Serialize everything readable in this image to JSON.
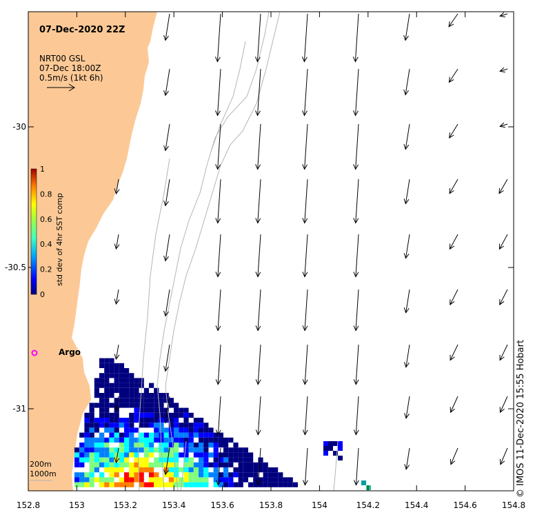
{
  "title": "07-Dec-2020 22Z",
  "legend": {
    "line1": "NRT00 GSL",
    "line2": "07-Dec 18:00Z",
    "line3": "0.5m/s (1kt 6h)"
  },
  "colorbar": {
    "label": "std dev of 4hr SST comp",
    "ticks": [
      "1",
      "0.8",
      "0.6",
      "0.4",
      "0.2",
      "0"
    ],
    "colors": [
      "#00007f",
      "#0000ff",
      "#007fff",
      "#00ffff",
      "#7fff7f",
      "#ffff00",
      "#ff7f00",
      "#ff0000",
      "#7f0000"
    ]
  },
  "axes": {
    "x_ticks": [
      "152.8",
      "153",
      "153.2",
      "153.4",
      "153.6",
      "153.8",
      "154",
      "154.2",
      "154.4",
      "154.6",
      "154.8"
    ],
    "y_ticks": [
      "-30",
      "-30.5",
      "-31"
    ]
  },
  "marker": {
    "label": "Argo",
    "color": "#ff00ff"
  },
  "depth_labels": {
    "shallow": "200m",
    "deep": "1000m"
  },
  "credit": "© IMOS 11-Dec-2020 15:55 Hobart",
  "colors": {
    "land": "#fcc996",
    "contour": "#b4b4b4",
    "arrow": "#000000",
    "frame": "#000000"
  }
}
